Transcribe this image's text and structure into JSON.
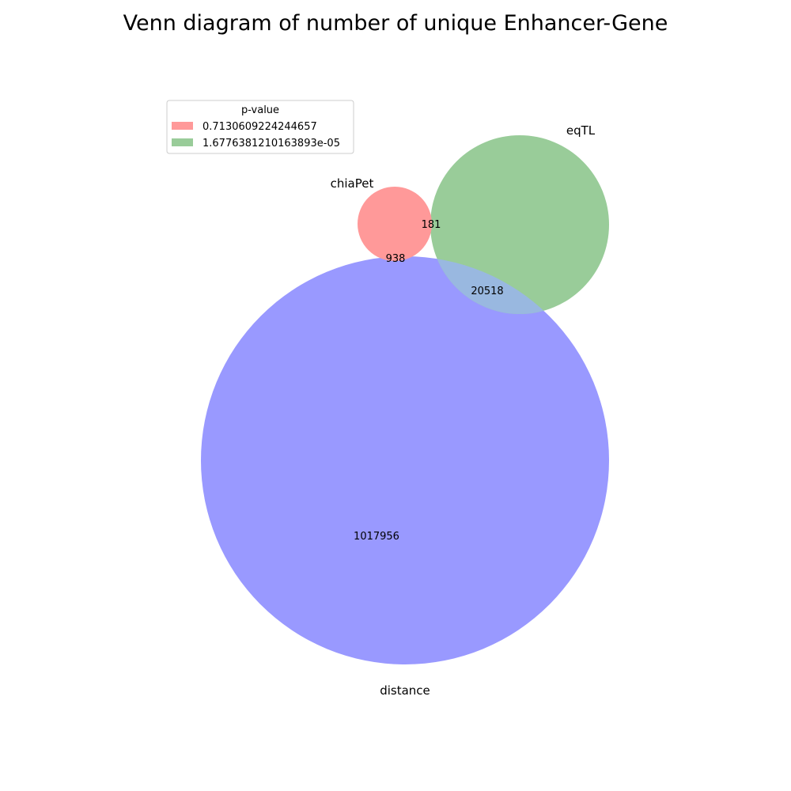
{
  "title": "Venn diagram of number of unique Enhancer-Gene",
  "sets": [
    {
      "name": "chiaPet",
      "color": "#ff9999"
    },
    {
      "name": "eqTL",
      "color": "#99cc99"
    },
    {
      "name": "distance",
      "color": "#9999ff"
    }
  ],
  "overlap_color": "#99b8e0",
  "regions": {
    "chiaPet_eqTL": "181",
    "chiaPet_distance": "938",
    "eqTL_distance": "20518",
    "distance_only": "1017956"
  },
  "legend": {
    "title": "p-value",
    "entries": [
      {
        "label": "0.7130609224244657",
        "color": "#ff9999"
      },
      {
        "label": "1.6776381210163893e-05",
        "color": "#99cc99"
      }
    ]
  }
}
